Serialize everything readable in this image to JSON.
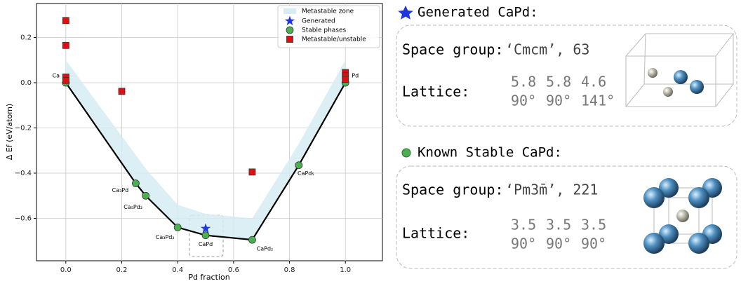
{
  "chart_data": {
    "type": "scatter",
    "xlabel": "Pd fraction",
    "ylabel": "Δ Ef (eV/atom)",
    "xlim": [
      -0.105,
      1.1325
    ],
    "ylim": [
      -0.7876,
      0.3504
    ],
    "xticks": [
      {
        "value": 0,
        "label": "0.0"
      },
      {
        "value": 0.2,
        "label": "0.2"
      },
      {
        "value": 0.4,
        "label": "0.4"
      },
      {
        "value": 0.6,
        "label": "0.6"
      },
      {
        "value": 0.8,
        "label": "0.8"
      },
      {
        "value": 1,
        "label": "1.0"
      }
    ],
    "yticks": [
      {
        "value": 0.2,
        "label": "0.2"
      },
      {
        "value": 0,
        "label": "0.0"
      },
      {
        "value": -0.2,
        "label": "−0.2"
      },
      {
        "value": -0.4,
        "label": "−0.4"
      },
      {
        "value": -0.6,
        "label": "−0.6"
      }
    ],
    "grid": true,
    "legend": "upper right",
    "zone": {
      "name": "Metastable zone",
      "color": "#d5ecf3",
      "x": [
        0,
        0.25,
        0.2857,
        0.4,
        0.5,
        0.6667,
        0.8333,
        1
      ],
      "lower": [
        0,
        -0.445,
        -0.5,
        -0.64,
        -0.675,
        -0.695,
        -0.365,
        0
      ],
      "upper": [
        0.1,
        -0.32,
        -0.38,
        -0.54,
        -0.58,
        -0.6,
        -0.27,
        0.1
      ]
    },
    "series": [
      {
        "name": "Generated",
        "color": "#1f35e0",
        "marker": "star",
        "x": [
          0.5
        ],
        "values": [
          -0.645
        ]
      },
      {
        "name": "Stable phases",
        "color": "#4caf50",
        "marker": "circle",
        "line_color": "#000000",
        "x": [
          0,
          0.25,
          0.2857,
          0.4,
          0.5,
          0.6667,
          0.8333,
          1
        ],
        "values": [
          0,
          -0.445,
          -0.5,
          -0.64,
          -0.675,
          -0.695,
          -0.365,
          0
        ],
        "point_labels": [
          "Ca",
          "Ca₃Pd",
          "Ca₅Pd₂",
          "Ca₃Pd₂",
          "CaPd",
          "CaPd₂",
          "CaPd₅",
          "Pd"
        ]
      },
      {
        "name": "Metastable/unstable",
        "color": "#dd1111",
        "marker": "square",
        "x": [
          0,
          0,
          0,
          0,
          0.2,
          0.6667,
          1,
          1,
          1
        ],
        "values": [
          0.275,
          0.165,
          0.025,
          0.01,
          -0.038,
          -0.395,
          0.045,
          0.03,
          0.015
        ]
      }
    ]
  },
  "panels": [
    {
      "title": "Generated CaPd:",
      "space_group_label": "Space group:",
      "space_group": "‘Cmcm’, 63",
      "lattice_label": "Lattice:",
      "lengths": [
        "5.8",
        "5.8",
        "4.6"
      ],
      "angles": [
        "90°",
        "90°",
        "141°"
      ]
    },
    {
      "title": "Known Stable CaPd:",
      "space_group_label": "Space group:",
      "space_group": "‘Pm3̄m’, 221",
      "lattice_label": "Lattice:",
      "lengths": [
        "3.5",
        "3.5",
        "3.5"
      ],
      "angles": [
        "90°",
        "90°",
        "90°"
      ]
    }
  ]
}
